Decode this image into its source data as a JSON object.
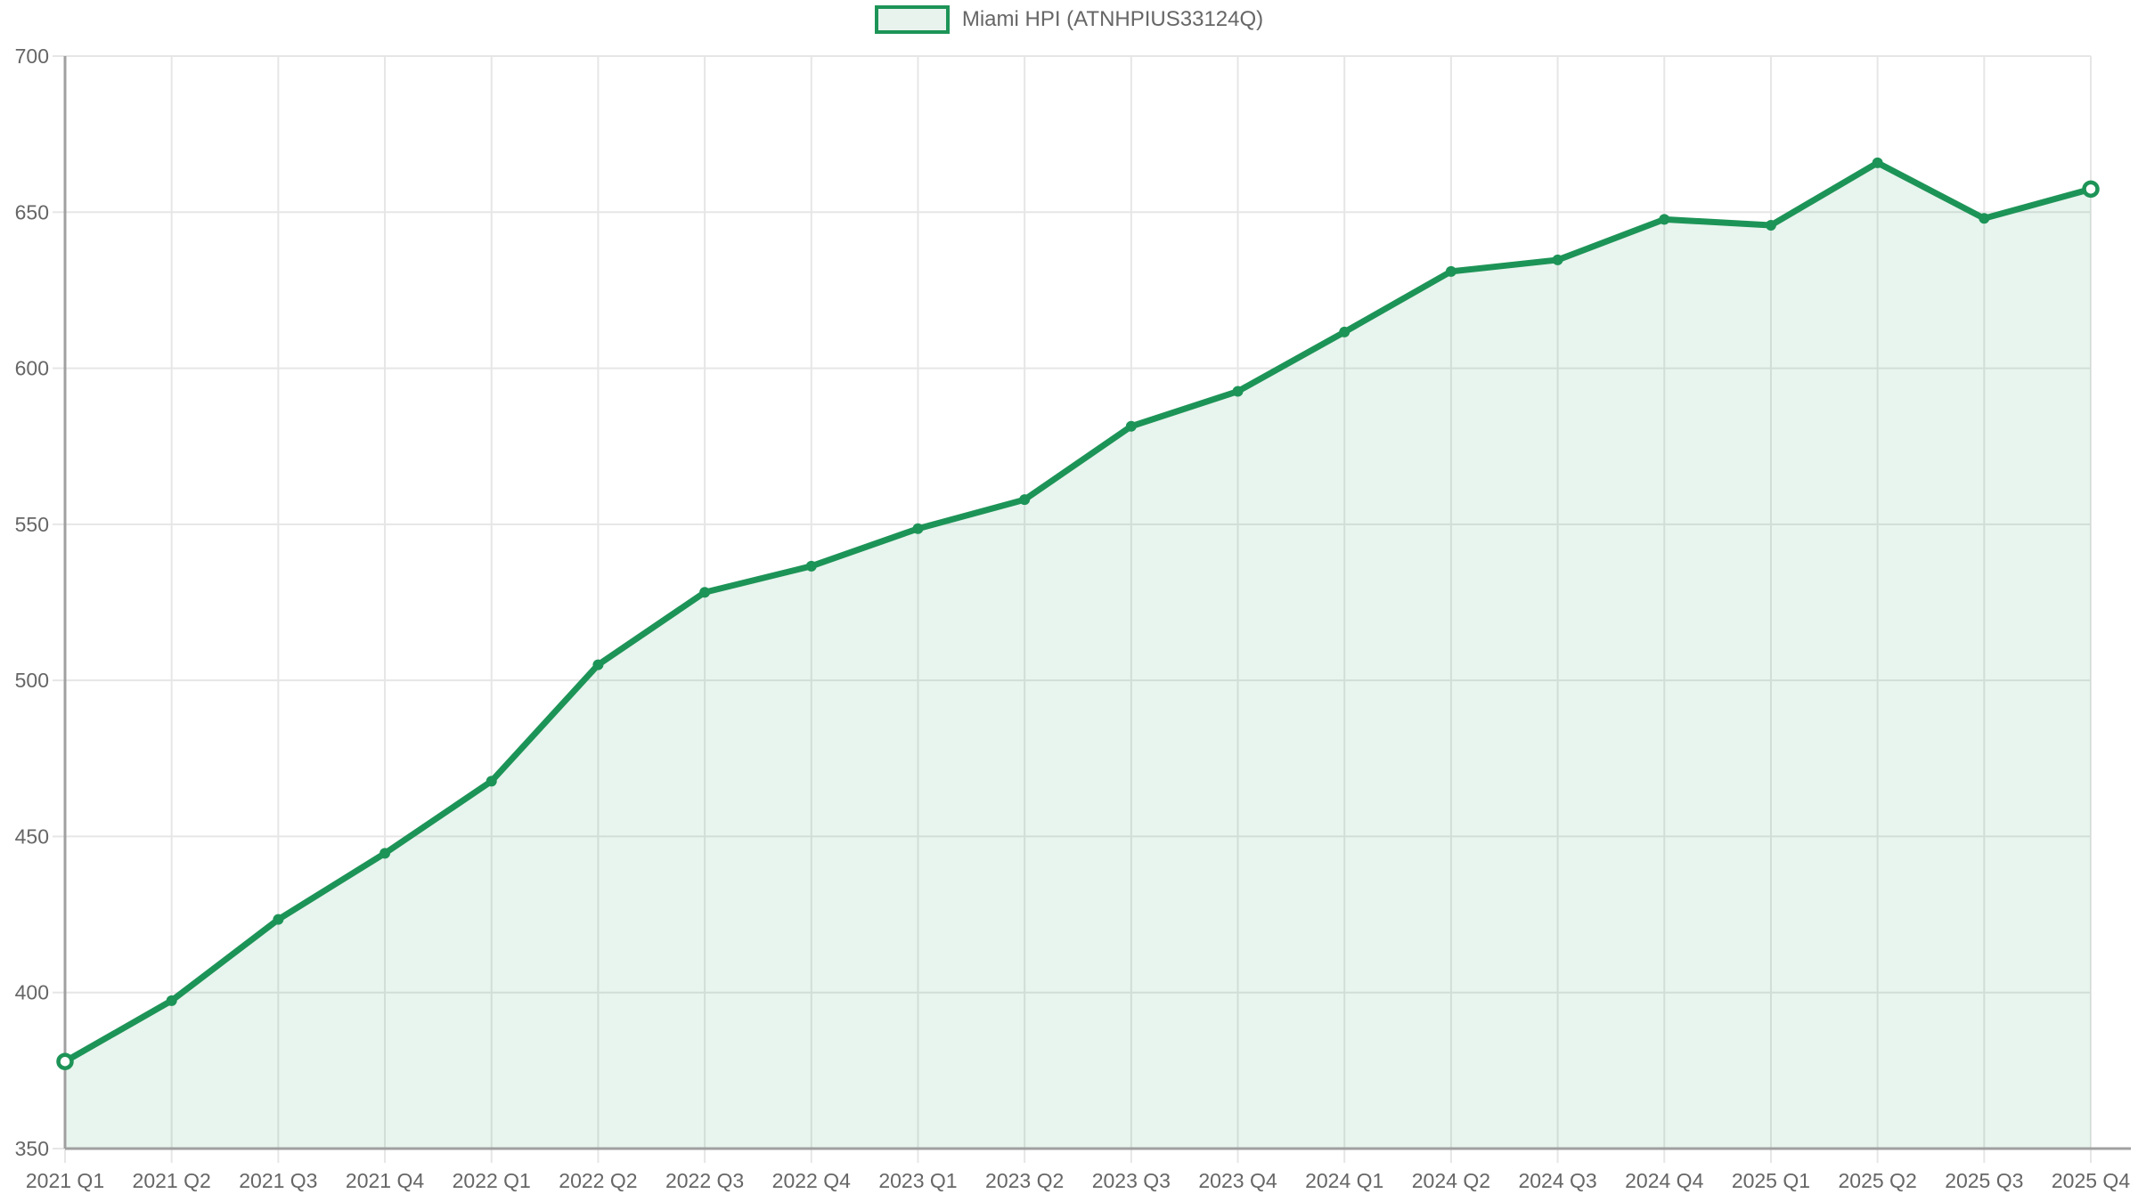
{
  "legend": {
    "label": "Miami HPI (ATNHPIUS33124Q)"
  },
  "colors": {
    "line": "#1d9457",
    "area_fill": "rgba(29, 148, 87, 0.10)",
    "legend_swatch_fill": "#e8f3ee",
    "grid": "#e6e6e6",
    "axis": "#a0a0a0",
    "tick_text": "#666666"
  },
  "chart_data": {
    "type": "area",
    "title": "Miami HPI (ATNHPIUS33124Q)",
    "x": [
      "2021 Q1",
      "2021 Q2",
      "2021 Q3",
      "2021 Q4",
      "2022 Q1",
      "2022 Q2",
      "2022 Q3",
      "2022 Q4",
      "2023 Q1",
      "2023 Q2",
      "2023 Q3",
      "2023 Q4",
      "2024 Q1",
      "2024 Q2",
      "2024 Q3",
      "2024 Q4",
      "2025 Q1",
      "2025 Q2",
      "2025 Q3",
      "2025 Q4"
    ],
    "series": [
      {
        "name": "Miami HPI (ATNHPIUS33124Q)",
        "values": [
          377.9,
          397.4,
          423.4,
          444.6,
          467.7,
          505.0,
          528.2,
          536.6,
          548.6,
          557.9,
          581.4,
          592.6,
          611.6,
          631.0,
          634.7,
          647.7,
          645.8,
          665.8,
          648.0,
          657.4
        ]
      }
    ],
    "xlabel": "",
    "ylabel": "",
    "ylim": [
      350,
      700
    ],
    "yticks": [
      350,
      400,
      450,
      500,
      550,
      600,
      650,
      700
    ],
    "grid": true,
    "legend_position": "top-center"
  }
}
